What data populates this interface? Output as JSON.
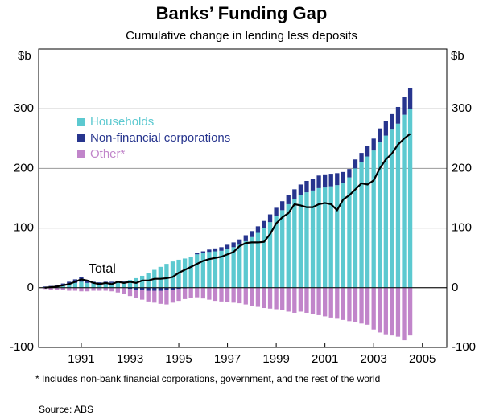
{
  "chart_data": {
    "type": "bar",
    "title": "Banks’ Funding Gap",
    "subtitle": "Cumulative change in lending less deposits",
    "y_label": "$b",
    "y2_label": "$b",
    "annotation": "Total",
    "footnote": "* Includes non-bank financial corporations, government, and the rest of the world",
    "source": "Source: ABS",
    "stacked": true,
    "grid": true,
    "legend": "upper left",
    "x": [
      1989.5,
      1989.75,
      1990,
      1990.25,
      1990.5,
      1990.75,
      1991,
      1991.25,
      1991.5,
      1991.75,
      1992,
      1992.25,
      1992.5,
      1992.75,
      1993,
      1993.25,
      1993.5,
      1993.75,
      1994,
      1994.25,
      1994.5,
      1994.75,
      1995,
      1995.25,
      1995.5,
      1995.75,
      1996,
      1996.25,
      1996.5,
      1996.75,
      1997,
      1997.25,
      1997.5,
      1997.75,
      1998,
      1998.25,
      1998.5,
      1998.75,
      1999,
      1999.25,
      1999.5,
      1999.75,
      2000,
      2000.25,
      2000.5,
      2000.75,
      2001,
      2001.25,
      2001.5,
      2001.75,
      2002,
      2002.25,
      2002.5,
      2002.75,
      2003,
      2003.25,
      2003.5,
      2003.75,
      2004,
      2004.25,
      2004.5
    ],
    "xlim": [
      1989.25,
      2006
    ],
    "xticks": [
      1991,
      1993,
      1995,
      1997,
      1999,
      2001,
      2003,
      2005
    ],
    "ylim": [
      -100,
      400
    ],
    "yticks": [
      -100,
      0,
      100,
      200,
      300
    ],
    "series": [
      {
        "name": "Households",
        "color": "#5cc9d0",
        "values": [
          1,
          2,
          3,
          4,
          6,
          8,
          10,
          8,
          7,
          6,
          7,
          8,
          9,
          10,
          13,
          16,
          20,
          25,
          30,
          35,
          40,
          44,
          47,
          49,
          52,
          56,
          58,
          60,
          61,
          62,
          65,
          68,
          72,
          78,
          85,
          92,
          100,
          110,
          120,
          130,
          140,
          148,
          155,
          160,
          163,
          167,
          168,
          170,
          172,
          175,
          185,
          200,
          210,
          220,
          230,
          245,
          255,
          265,
          275,
          290,
          300
        ]
      },
      {
        "name": "Non-financial corporations",
        "color": "#27358e",
        "values": [
          1,
          1,
          2,
          3,
          4,
          6,
          8,
          5,
          3,
          3,
          3,
          2,
          2,
          1,
          -2,
          -3,
          -4,
          -5,
          -5,
          -5,
          -4,
          -3,
          -2,
          -1,
          0,
          2,
          3,
          4,
          5,
          6,
          7,
          8,
          9,
          10,
          10,
          11,
          12,
          13,
          14,
          15,
          16,
          17,
          18,
          19,
          20,
          21,
          22,
          21,
          20,
          19,
          14,
          15,
          16,
          18,
          20,
          22,
          24,
          26,
          28,
          30,
          35
        ]
      },
      {
        "name": "Other*",
        "color": "#c185ca",
        "values": [
          -2,
          -3,
          -4,
          -4,
          -5,
          -5,
          -6,
          -6,
          -5,
          -5,
          -5,
          -6,
          -8,
          -10,
          -12,
          -14,
          -16,
          -18,
          -20,
          -22,
          -24,
          -22,
          -20,
          -18,
          -17,
          -16,
          -18,
          -20,
          -22,
          -23,
          -24,
          -25,
          -26,
          -28,
          -30,
          -32,
          -34,
          -35,
          -36,
          -38,
          -40,
          -42,
          -40,
          -42,
          -44,
          -46,
          -48,
          -50,
          -52,
          -54,
          -56,
          -58,
          -60,
          -62,
          -70,
          -75,
          -78,
          -80,
          -82,
          -88,
          -80
        ]
      }
    ],
    "line": {
      "name": "Total",
      "color": "#000000",
      "values": [
        0,
        1,
        2,
        4,
        6,
        10,
        14,
        12,
        8,
        6,
        8,
        6,
        10,
        8,
        10,
        8,
        12,
        12,
        15,
        15,
        16,
        18,
        25,
        30,
        35,
        40,
        45,
        48,
        50,
        52,
        56,
        60,
        70,
        75,
        76,
        76,
        77,
        90,
        108,
        118,
        125,
        140,
        138,
        135,
        135,
        140,
        142,
        140,
        130,
        148,
        155,
        165,
        175,
        173,
        180,
        200,
        215,
        225,
        240,
        250,
        258
      ]
    }
  }
}
